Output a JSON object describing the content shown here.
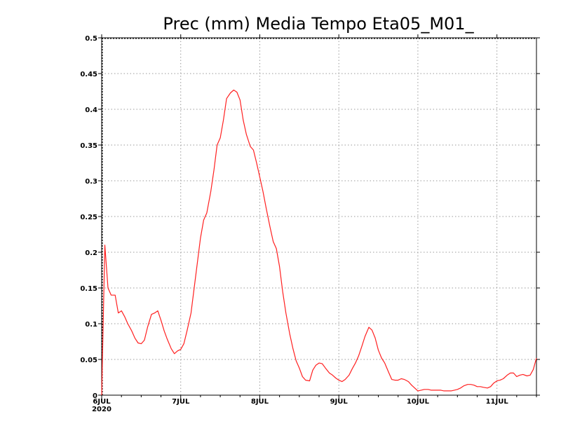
{
  "chart_data": {
    "type": "line",
    "title": "Prec (mm) Media Tempo Eta05_M01_",
    "xlabel": "",
    "ylabel": "",
    "ylim": [
      0,
      0.5
    ],
    "yticks": [
      0,
      0.05,
      0.1,
      0.15,
      0.2,
      0.25,
      0.3,
      0.35,
      0.4,
      0.45,
      0.5
    ],
    "ytick_labels": [
      "0",
      "0.05",
      "0.1",
      "0.15",
      "0.2",
      "0.25",
      "0.3",
      "0.35",
      "0.4",
      "0.45",
      "0.5"
    ],
    "xlim": [
      0,
      5.5
    ],
    "xticks": [
      0,
      1,
      2,
      3,
      4,
      5
    ],
    "xtick_labels": [
      "6JUL",
      "7JUL",
      "8JUL",
      "9JUL",
      "10JUL",
      "11JUL"
    ],
    "xtick_sublabel": "2020",
    "grid": true,
    "series": [
      {
        "color": "#ff2020",
        "x": [
          0,
          0.04,
          0.08,
          0.12,
          0.17,
          0.21,
          0.25,
          0.29,
          0.33,
          0.38,
          0.42,
          0.46,
          0.5,
          0.54,
          0.58,
          0.63,
          0.67,
          0.71,
          0.75,
          0.79,
          0.83,
          0.88,
          0.92,
          0.96,
          1.0,
          1.04,
          1.08,
          1.13,
          1.17,
          1.21,
          1.25,
          1.29,
          1.33,
          1.38,
          1.42,
          1.46,
          1.5,
          1.54,
          1.58,
          1.63,
          1.67,
          1.71,
          1.75,
          1.79,
          1.83,
          1.88,
          1.92,
          1.96,
          2.0,
          2.04,
          2.08,
          2.13,
          2.17,
          2.21,
          2.25,
          2.29,
          2.33,
          2.38,
          2.42,
          2.46,
          2.5,
          2.54,
          2.58,
          2.63,
          2.67,
          2.71,
          2.75,
          2.79,
          2.83,
          2.88,
          2.92,
          2.96,
          3.0,
          3.04,
          3.08,
          3.13,
          3.17,
          3.21,
          3.25,
          3.29,
          3.33,
          3.38,
          3.42,
          3.46,
          3.5,
          3.54,
          3.58,
          3.63,
          3.67,
          3.71,
          3.75,
          3.79,
          3.83,
          3.88,
          3.92,
          3.96,
          4.0,
          4.04,
          4.08,
          4.13,
          4.17,
          4.21,
          4.25,
          4.29,
          4.33,
          4.38,
          4.42,
          4.46,
          4.5,
          4.54,
          4.58,
          4.63,
          4.67,
          4.71,
          4.75,
          4.79,
          4.83,
          4.88,
          4.92,
          4.96,
          5.0,
          5.04,
          5.08,
          5.13,
          5.17,
          5.21,
          5.25,
          5.29,
          5.33,
          5.38,
          5.42,
          5.46,
          5.5
        ],
        "y": [
          0.0,
          0.21,
          0.15,
          0.14,
          0.14,
          0.115,
          0.118,
          0.11,
          0.1,
          0.09,
          0.08,
          0.073,
          0.072,
          0.077,
          0.095,
          0.113,
          0.115,
          0.118,
          0.105,
          0.09,
          0.078,
          0.065,
          0.058,
          0.062,
          0.064,
          0.072,
          0.09,
          0.115,
          0.15,
          0.185,
          0.22,
          0.245,
          0.255,
          0.285,
          0.315,
          0.35,
          0.36,
          0.385,
          0.415,
          0.423,
          0.427,
          0.424,
          0.413,
          0.385,
          0.365,
          0.348,
          0.343,
          0.325,
          0.305,
          0.285,
          0.262,
          0.235,
          0.215,
          0.205,
          0.18,
          0.145,
          0.115,
          0.085,
          0.065,
          0.048,
          0.038,
          0.026,
          0.021,
          0.02,
          0.035,
          0.042,
          0.045,
          0.044,
          0.038,
          0.031,
          0.028,
          0.024,
          0.021,
          0.019,
          0.022,
          0.028,
          0.037,
          0.045,
          0.055,
          0.068,
          0.082,
          0.095,
          0.091,
          0.08,
          0.063,
          0.052,
          0.045,
          0.032,
          0.022,
          0.021,
          0.021,
          0.023,
          0.022,
          0.019,
          0.014,
          0.01,
          0.006,
          0.007,
          0.008,
          0.008,
          0.007,
          0.007,
          0.007,
          0.007,
          0.006,
          0.006,
          0.006,
          0.007,
          0.008,
          0.01,
          0.013,
          0.015,
          0.015,
          0.014,
          0.012,
          0.012,
          0.011,
          0.01,
          0.012,
          0.017,
          0.02,
          0.021,
          0.023,
          0.028,
          0.031,
          0.031,
          0.026,
          0.028,
          0.029,
          0.027,
          0.028,
          0.036,
          0.052
        ]
      }
    ]
  }
}
